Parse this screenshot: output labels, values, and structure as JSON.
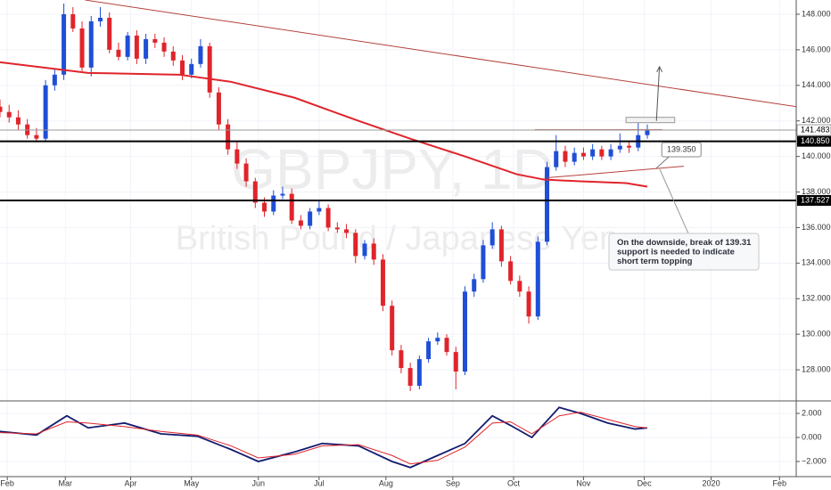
{
  "chart_data": [
    {
      "type": "candlestick",
      "title": "GBPJPY, 1D",
      "subtitle": "British Pound / Japanese Yen",
      "x": [
        0,
        3,
        6,
        9,
        12,
        15,
        18,
        21,
        24,
        27,
        30,
        33,
        36,
        39,
        42,
        45,
        48,
        51,
        54,
        57,
        60,
        63,
        66,
        69,
        72,
        75,
        78,
        81,
        84,
        87,
        90,
        93,
        96,
        99,
        102,
        105,
        108,
        111,
        114,
        117,
        120,
        123,
        126,
        129,
        132,
        135,
        138,
        141,
        144,
        147,
        150,
        153,
        156,
        159,
        162,
        165,
        168,
        171,
        174,
        177,
        180,
        183,
        186,
        189,
        192,
        195,
        198,
        201,
        204,
        207,
        210,
        213
      ],
      "open": [
        142.8,
        142.5,
        142.2,
        141.8,
        141.2,
        141.0,
        144.0,
        144.6,
        148.0,
        147.2,
        145.0,
        147.6,
        147.8,
        146.0,
        145.6,
        146.8,
        145.5,
        146.6,
        146.4,
        145.9,
        145.4,
        144.6,
        145.2,
        146.2,
        143.6,
        141.8,
        140.4,
        139.6,
        138.6,
        137.4,
        136.9,
        137.8,
        137.9,
        136.4,
        136.1,
        136.9,
        137.1,
        136.0,
        135.9,
        135.7,
        134.4,
        135.1,
        134.2,
        131.6,
        129.1,
        128.1,
        127.1,
        128.6,
        129.6,
        129.8,
        129.0,
        127.9,
        132.4,
        133.1,
        135.0,
        135.9,
        134.1,
        133.0,
        132.4,
        131.0,
        135.2,
        139.4,
        140.3,
        139.7,
        140.2,
        140.0,
        140.4,
        140.0,
        140.4,
        140.6,
        140.5,
        141.2
      ],
      "high": [
        143.2,
        142.9,
        142.6,
        142.1,
        141.6,
        144.3,
        144.9,
        148.6,
        148.4,
        147.6,
        147.9,
        148.4,
        148.1,
        146.4,
        147.0,
        147.1,
        146.9,
        146.9,
        146.7,
        146.2,
        145.7,
        145.5,
        146.6,
        146.4,
        143.9,
        142.1,
        140.8,
        139.9,
        138.8,
        137.7,
        138.1,
        138.3,
        138.2,
        136.7,
        137.1,
        137.5,
        137.3,
        136.3,
        136.2,
        135.9,
        135.3,
        135.4,
        134.5,
        131.9,
        129.4,
        128.4,
        128.8,
        129.8,
        130.1,
        130.0,
        129.3,
        132.7,
        133.4,
        135.3,
        136.3,
        136.1,
        134.4,
        133.3,
        132.7,
        135.5,
        139.7,
        141.2,
        140.6,
        140.5,
        140.5,
        140.7,
        140.6,
        140.7,
        141.3,
        140.9,
        141.9,
        141.8
      ],
      "low": [
        142.2,
        141.9,
        141.5,
        141.0,
        140.8,
        140.8,
        143.7,
        144.3,
        147.0,
        144.8,
        144.5,
        147.3,
        145.8,
        145.4,
        145.4,
        145.2,
        145.2,
        146.1,
        145.6,
        145.1,
        144.3,
        144.4,
        145.0,
        143.3,
        141.5,
        140.1,
        139.3,
        138.3,
        137.1,
        136.6,
        136.7,
        137.6,
        136.2,
        135.9,
        135.9,
        136.7,
        135.8,
        135.7,
        135.4,
        134.0,
        134.2,
        133.9,
        131.3,
        128.8,
        127.8,
        126.8,
        126.9,
        128.4,
        129.4,
        128.8,
        126.9,
        127.7,
        132.1,
        132.9,
        134.8,
        133.8,
        132.8,
        132.1,
        130.6,
        130.8,
        135.0,
        139.2,
        139.4,
        139.5,
        139.8,
        139.8,
        139.8,
        139.8,
        140.2,
        140.2,
        140.3,
        141.0
      ],
      "close": [
        142.5,
        142.2,
        141.8,
        141.2,
        141.0,
        144.0,
        144.6,
        148.0,
        147.2,
        145.0,
        147.6,
        147.8,
        146.0,
        145.6,
        146.8,
        145.5,
        146.6,
        146.4,
        145.9,
        145.4,
        144.6,
        145.2,
        146.2,
        143.6,
        141.8,
        140.4,
        139.6,
        138.6,
        137.4,
        136.9,
        137.8,
        137.9,
        136.4,
        136.1,
        136.9,
        137.1,
        136.0,
        135.9,
        135.7,
        134.4,
        135.1,
        134.2,
        131.6,
        129.1,
        128.1,
        127.1,
        128.6,
        129.6,
        129.8,
        129.0,
        127.9,
        132.4,
        133.1,
        135.0,
        135.9,
        134.1,
        133.0,
        132.4,
        131.0,
        135.2,
        139.4,
        140.3,
        139.7,
        140.2,
        140.0,
        140.4,
        140.0,
        140.4,
        140.6,
        140.5,
        141.2,
        141.48
      ],
      "up_color": "#1f4fd6",
      "down_color": "#e0242b",
      "moving_average": {
        "color": "#e0242b",
        "x": [
          0,
          29,
          59,
          76,
          97,
          118,
          135,
          153,
          170,
          179,
          191,
          206,
          213
        ],
        "values": [
          145.3,
          144.7,
          144.6,
          144.2,
          143.3,
          142.0,
          141.0,
          140.0,
          139.0,
          138.7,
          138.6,
          138.5,
          138.3
        ]
      },
      "trendlines": [
        {
          "color": "#b5423c",
          "x": [
            28,
            262
          ],
          "values": [
            148.8,
            142.8
          ]
        },
        {
          "color": "#b5423c",
          "x": [
            176,
            218
          ],
          "values": [
            141.5,
            141.5
          ]
        },
        {
          "color": "#b5423c",
          "x": [
            180,
            225
          ],
          "values": [
            138.8,
            139.45
          ]
        }
      ],
      "levels": [
        {
          "value": 141.483,
          "label": "141.483",
          "color": "#999999",
          "width": 1
        },
        {
          "value": 140.85,
          "label": "140.850",
          "color": "#000000",
          "width": 2
        },
        {
          "value": 137.527,
          "label": "137.527",
          "color": "#000000",
          "width": 2
        }
      ],
      "target_box": {
        "x": [
          206,
          222
        ],
        "values": [
          141.9,
          142.2
        ]
      },
      "arrow": {
        "x": [
          216,
          217
        ],
        "values": [
          142.0,
          145.05
        ]
      },
      "callout": {
        "x": 216,
        "value": 139.35,
        "label": "139.350"
      },
      "note": "On the downside, break of 139.31 support is needed to indicate short term topping",
      "xlim": [
        0,
        262
      ],
      "ylim": [
        126.25,
        148.8
      ],
      "yticks": [
        {
          "value": 128,
          "label": "128.000"
        },
        {
          "value": 130,
          "label": "130.000"
        },
        {
          "value": 132,
          "label": "132.000"
        },
        {
          "value": 134,
          "label": "134.000"
        },
        {
          "value": 136,
          "label": "136.000"
        },
        {
          "value": 138,
          "label": "138.000"
        },
        {
          "value": 140,
          "label": "140.000"
        },
        {
          "value": 142,
          "label": "142.000"
        },
        {
          "value": 144,
          "label": "144.000"
        },
        {
          "value": 146,
          "label": "146.000"
        },
        {
          "value": 148,
          "label": "148.000"
        }
      ],
      "xticks": [
        {
          "value": 2.4,
          "label": "Feb"
        },
        {
          "value": 21.5,
          "label": "Mar"
        },
        {
          "value": 43,
          "label": "Apr"
        },
        {
          "value": 63,
          "label": "May"
        },
        {
          "value": 85,
          "label": "Jun"
        },
        {
          "value": 105,
          "label": "Jul"
        },
        {
          "value": 127,
          "label": "Aug"
        },
        {
          "value": 149,
          "label": "Sep"
        },
        {
          "value": 169,
          "label": "Oct"
        },
        {
          "value": 192,
          "label": "Nov"
        },
        {
          "value": 212,
          "label": "Dec"
        },
        {
          "value": 234,
          "label": "2020"
        },
        {
          "value": 256.5,
          "label": "Feb"
        }
      ],
      "grid": true
    },
    {
      "type": "line",
      "x": [
        0,
        12,
        22,
        29,
        41,
        53,
        65,
        76,
        85,
        97,
        106,
        118,
        129,
        135,
        144,
        153,
        162,
        168,
        175,
        184,
        191,
        200,
        209,
        213
      ],
      "series": [
        {
          "color": "#131c6e",
          "values": [
            0.5,
            0.2,
            1.8,
            0.8,
            1.2,
            0.3,
            0.1,
            -1.0,
            -2.0,
            -1.2,
            -0.5,
            -0.7,
            -2.0,
            -2.5,
            -1.5,
            -0.5,
            1.8,
            1.0,
            0.0,
            2.5,
            2.0,
            1.2,
            0.7,
            0.8
          ]
        },
        {
          "color": "#e0242b",
          "values": [
            0.4,
            0.3,
            1.3,
            1.2,
            0.9,
            0.5,
            0.2,
            -0.7,
            -1.7,
            -1.4,
            -0.7,
            -0.6,
            -1.5,
            -2.2,
            -1.9,
            -0.8,
            1.2,
            1.3,
            0.3,
            1.8,
            2.1,
            1.5,
            0.9,
            0.8
          ]
        }
      ],
      "xlim": [
        0,
        262
      ],
      "ylim": [
        -3.26,
        3.04
      ],
      "yticks": [
        {
          "value": 2,
          "label": "2.000"
        },
        {
          "value": 0,
          "label": "0.000"
        },
        {
          "value": -2,
          "label": "−2.000"
        }
      ],
      "grid": true
    }
  ]
}
